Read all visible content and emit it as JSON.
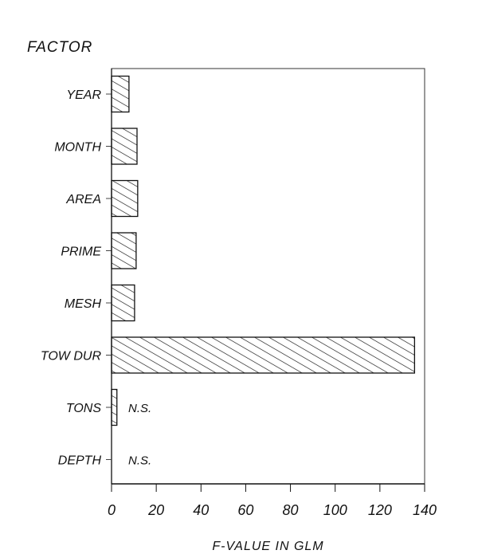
{
  "chart_data": {
    "type": "bar",
    "orientation": "horizontal",
    "title": "",
    "ylabel": "FACTOR",
    "xlabel": "F-VALUE IN GLM",
    "categories": [
      "YEAR",
      "MONTH",
      "AREA",
      "PRIME",
      "MESH",
      "TOW DUR",
      "TONS",
      "DEPTH"
    ],
    "values": [
      7.8,
      11.4,
      11.7,
      11.0,
      10.3,
      135.5,
      2.4,
      0
    ],
    "annotations": [
      {
        "category": "TONS",
        "text": "N.S."
      },
      {
        "category": "DEPTH",
        "text": "N.S."
      }
    ],
    "xlim": [
      0,
      140
    ],
    "xticks": [
      0,
      20,
      40,
      60,
      80,
      100,
      120,
      140
    ],
    "xtick_labels": [
      "0",
      "20",
      "40",
      "60",
      "80",
      "100",
      "120",
      "140"
    ],
    "grid": false,
    "legend": null,
    "bar_fill": "diagonal-hatch",
    "colors": {
      "ink": "#111111",
      "background": "#ffffff"
    }
  }
}
